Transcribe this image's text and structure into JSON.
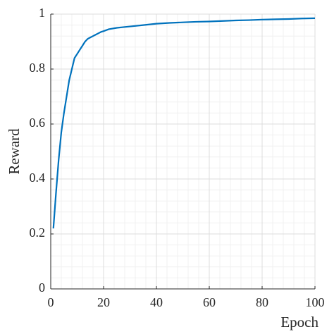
{
  "chart_data": {
    "type": "line",
    "x_label": "Epoch",
    "y_label": "Reward",
    "series": [
      {
        "name": "Reward",
        "color": "#0072bd",
        "x": [
          1,
          2,
          3,
          4,
          5,
          6,
          7,
          8,
          9,
          10,
          11,
          12,
          13,
          14,
          15,
          16,
          17,
          18,
          19,
          20,
          22,
          25,
          28,
          30,
          35,
          40,
          45,
          50,
          55,
          60,
          65,
          70,
          75,
          80,
          85,
          90,
          95,
          100
        ],
        "values": [
          0.22,
          0.35,
          0.47,
          0.57,
          0.64,
          0.7,
          0.76,
          0.8,
          0.84,
          0.855,
          0.87,
          0.885,
          0.9,
          0.91,
          0.915,
          0.92,
          0.925,
          0.93,
          0.935,
          0.938,
          0.945,
          0.95,
          0.953,
          0.955,
          0.96,
          0.965,
          0.968,
          0.97,
          0.972,
          0.973,
          0.975,
          0.977,
          0.978,
          0.98,
          0.981,
          0.982,
          0.984,
          0.985
        ]
      }
    ],
    "xlim": [
      0,
      100
    ],
    "xticks": [
      0,
      20,
      40,
      60,
      80,
      100
    ],
    "ylim": [
      0,
      1
    ],
    "yticks": [
      0,
      0.2,
      0.4,
      0.6,
      0.8,
      1
    ],
    "grid": true,
    "minor_grid": true
  }
}
